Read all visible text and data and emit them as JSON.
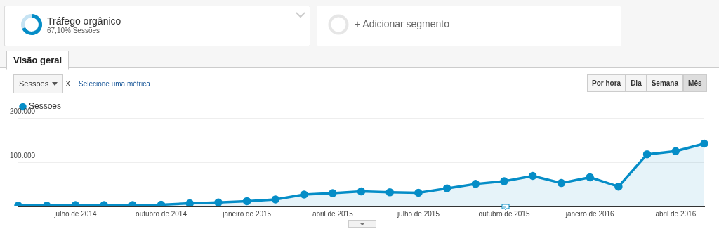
{
  "chart_data": {
    "type": "area",
    "title": "Tráfego orgânico",
    "subtitle": "67,10% Sessões",
    "annotations": [
      "+ Adicionar segmento",
      "Visão geral",
      "Sessões",
      "x",
      "Selecione uma métrica",
      "Por hora",
      "Dia",
      "Semana",
      "Mês"
    ],
    "categories": [
      null,
      null,
      "julho de 2014",
      null,
      null,
      "outubro de 2014",
      null,
      null,
      "janeiro de 2015",
      null,
      null,
      "abril de 2015",
      null,
      null,
      "julho de 2015",
      null,
      null,
      "outubro de 2015",
      null,
      null,
      "janeiro de 2016",
      null,
      null,
      "abril de 2016",
      null
    ],
    "series": [
      {
        "name": "Sessões",
        "color": "#058dc7",
        "values": [
          2000,
          2000,
          3000,
          3000,
          3000,
          4000,
          7000,
          9000,
          12000,
          16000,
          27000,
          30000,
          34000,
          32000,
          31000,
          41000,
          51000,
          57000,
          69000,
          53000,
          66000,
          45000,
          118000,
          125000,
          142000
        ]
      }
    ],
    "ylim": [
      0,
      200000
    ],
    "yticks": [
      {
        "value": 0,
        "label": null
      },
      {
        "value": 100000,
        "label": "100.000"
      },
      {
        "value": 200000,
        "label": "200.000"
      }
    ],
    "grid": "y",
    "legend": "top left",
    "marker": "circle",
    "line_style": "solid"
  }
}
